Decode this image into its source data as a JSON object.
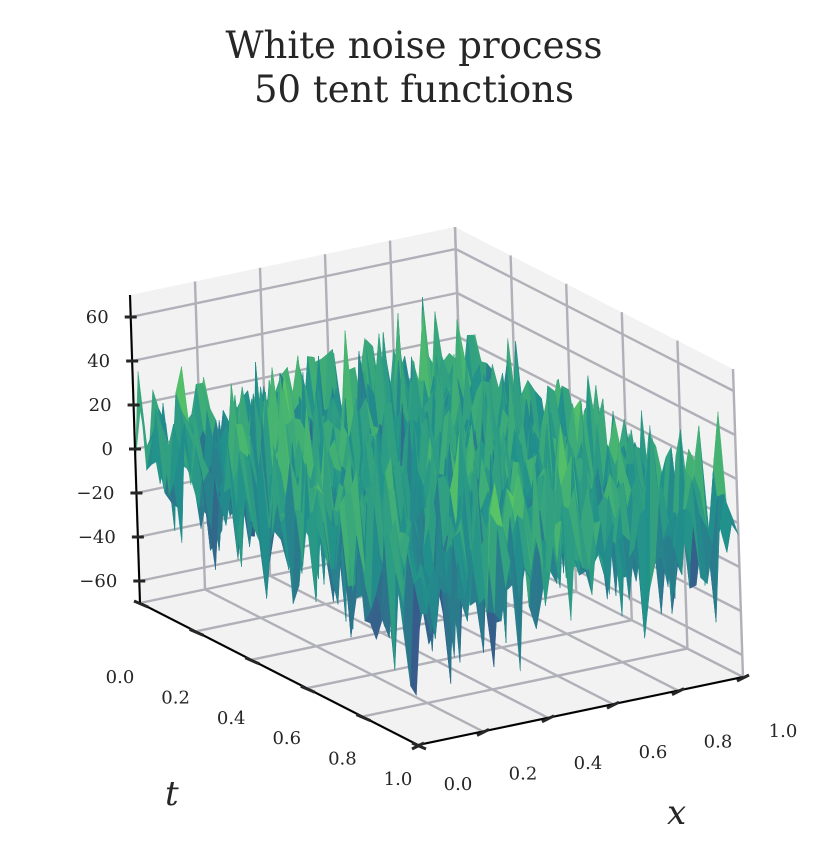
{
  "chart_data": {
    "type": "surface",
    "title_lines": [
      "White noise process",
      "50 tent functions"
    ],
    "xlabel": "x",
    "ylabel": "t",
    "zlabel": "",
    "xlim": [
      0,
      1
    ],
    "ylim": [
      0,
      1
    ],
    "zlim": [
      -70,
      70
    ],
    "x_ticks": [
      "0.0",
      "0.2",
      "0.4",
      "0.6",
      "0.8",
      "1.0"
    ],
    "t_ticks": [
      "0.0",
      "0.2",
      "0.4",
      "0.6",
      "0.8",
      "1.0"
    ],
    "z_ticks": [
      "60",
      "40",
      "20",
      "0",
      "−20",
      "−40",
      "−60"
    ],
    "z_tick_values": [
      60,
      40,
      20,
      0,
      -20,
      -40,
      -60
    ],
    "grid": true,
    "colormap": "viridis",
    "colormap_stops": [
      "#440154",
      "#3b528b",
      "#21918c",
      "#5ec962",
      "#fde725"
    ],
    "grid_points": 50,
    "z_range_observed": [
      -60,
      60
    ]
  },
  "colors": {
    "pane_fill": "#f2f2f2",
    "pane_grid": "#b0b0b8",
    "axis_line": "#000000"
  }
}
